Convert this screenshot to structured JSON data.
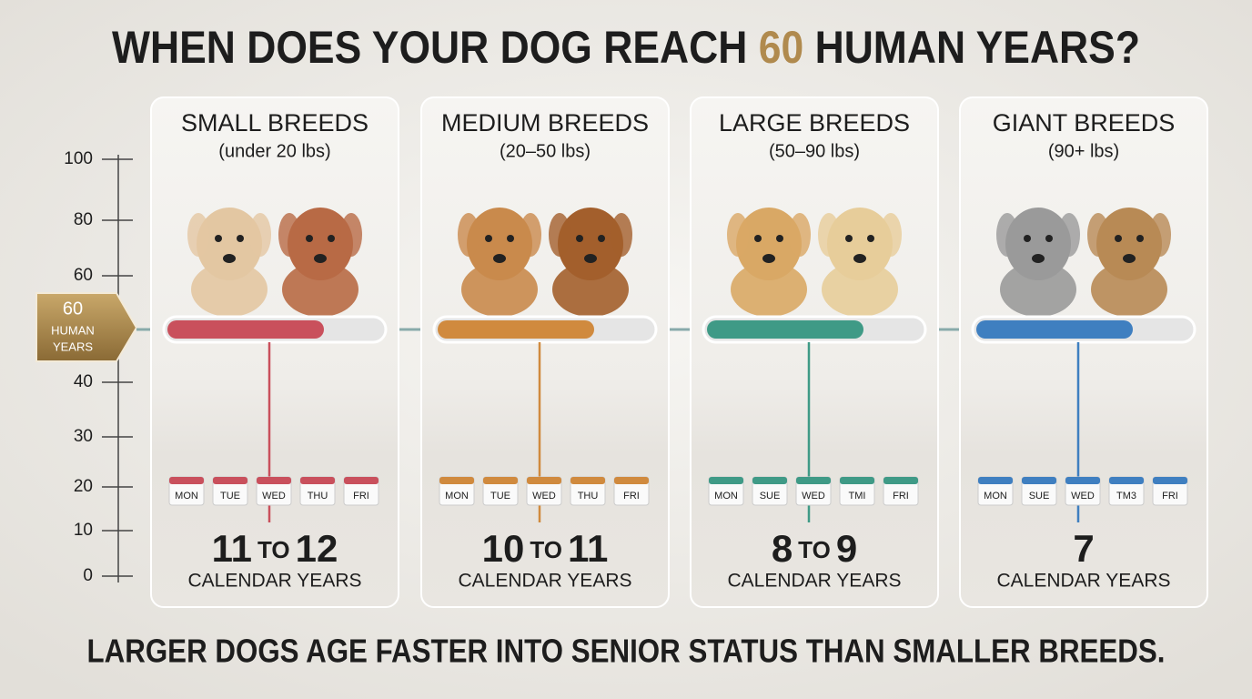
{
  "title": {
    "before": "WHEN DOES YOUR DOG REACH",
    "highlight": "60",
    "after": "HUMAN YEARS?"
  },
  "axis": {
    "ticks": [
      100,
      80,
      60,
      40,
      30,
      20,
      10,
      0
    ]
  },
  "badge": {
    "number": "60",
    "line1": "HUMAN",
    "line2": "YEARS"
  },
  "cards": [
    {
      "name": "SMALL BREEDS",
      "weight": "(under 20 lbs)",
      "days": [
        "MON",
        "TUE",
        "WED",
        "THU",
        "FRI"
      ],
      "from": "11",
      "to_word": "TO",
      "to": "12",
      "unit": "CALENDAR YEARS"
    },
    {
      "name": "MEDIUM BREEDS",
      "weight": "(20–50 lbs)",
      "days": [
        "MON",
        "TUE",
        "WED",
        "THU",
        "FRI"
      ],
      "from": "10",
      "to_word": "TO",
      "to": "11",
      "unit": "CALENDAR YEARS"
    },
    {
      "name": "LARGE BREEDS",
      "weight": "(50–90 lbs)",
      "days": [
        "MON",
        "SUE",
        "WED",
        "TMI",
        "FRI"
      ],
      "from": "8",
      "to_word": "TO",
      "to": "9",
      "unit": "CALENDAR YEARS"
    },
    {
      "name": "GIANT BREEDS",
      "weight": "(90+ lbs)",
      "days": [
        "MON",
        "SUE",
        "WED",
        "TM3",
        "FRI"
      ],
      "from": "7",
      "unit": "CALENDAR YEARS"
    }
  ],
  "footer": "LARGER DOGS AGE FASTER INTO SENIOR STATUS THAN SMALLER BREEDS."
}
